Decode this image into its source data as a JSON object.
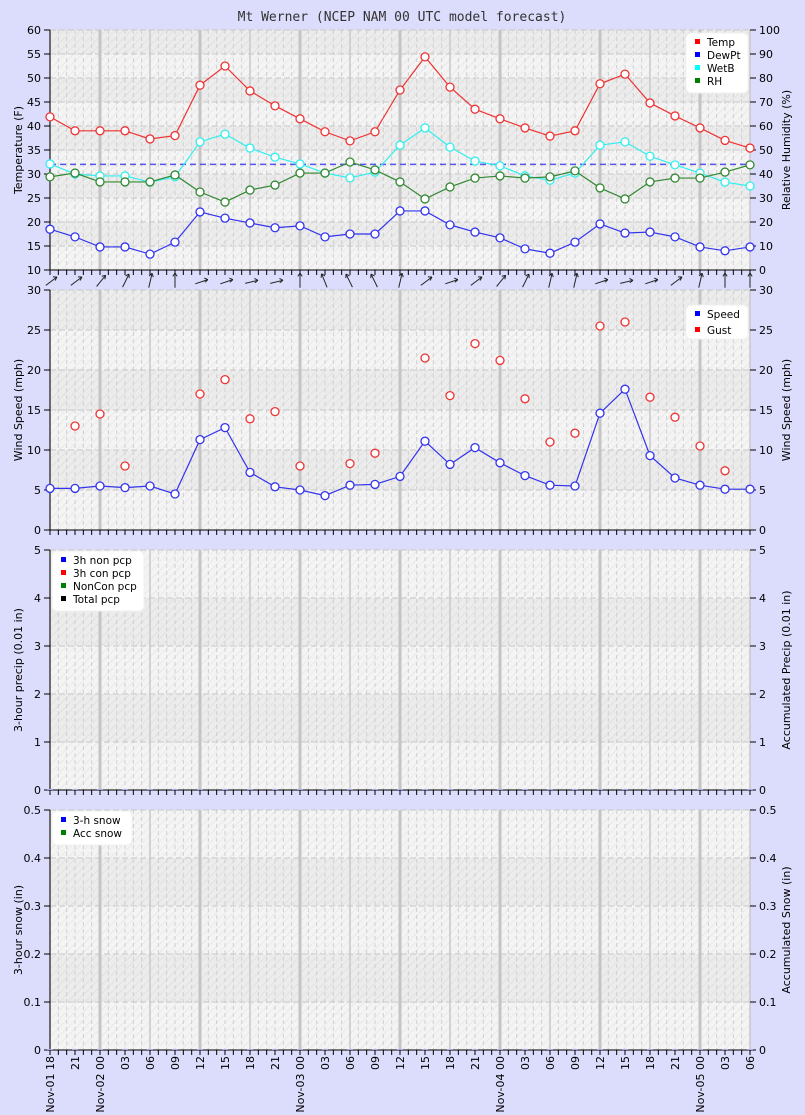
{
  "title": "Mt Werner (NCEP NAM 00 UTC model forecast)",
  "x_axis": {
    "labels": [
      "Nov-01 18",
      "21",
      "Nov-02 00",
      "03",
      "06",
      "09",
      "12",
      "15",
      "18",
      "21",
      "Nov-03 00",
      "03",
      "06",
      "09",
      "12",
      "15",
      "18",
      "21",
      "Nov-04 00",
      "03",
      "06",
      "09",
      "12",
      "15",
      "18",
      "21",
      "Nov-05 00",
      "03",
      "06"
    ]
  },
  "panels": {
    "temp": {
      "ylabel_left": "Temperature (F)",
      "ylabel_right": "Relative Humidity (%)",
      "legend": [
        {
          "label": "Temp",
          "color": "#ff0000"
        },
        {
          "label": "DewPt",
          "color": "#0000ff"
        },
        {
          "label": "WetB",
          "color": "#00ffff"
        },
        {
          "label": "RH",
          "color": "#008000"
        }
      ]
    },
    "wind": {
      "ylabel_left": "Wind Speed (mph)",
      "ylabel_right": "Wind Speed (mph)",
      "legend": [
        {
          "label": "Speed",
          "color": "#0000ff"
        },
        {
          "label": "Gust",
          "color": "#ff0000"
        }
      ]
    },
    "precip": {
      "ylabel_left": "3-hour precip (0.01 in)",
      "ylabel_right": "Accumulated Precip (0.01 in)",
      "legend": [
        {
          "label": "3h non pcp",
          "color": "#0000ff"
        },
        {
          "label": "3h con pcp",
          "color": "#ff0000"
        },
        {
          "label": "NonCon pcp",
          "color": "#008000"
        },
        {
          "label": "Total pcp",
          "color": "#000000"
        }
      ]
    },
    "snow": {
      "ylabel_left": "3-hour snow (in)",
      "ylabel_right": "Accumulated Snow (in)",
      "legend": [
        {
          "label": "3-h snow",
          "color": "#0000ff"
        },
        {
          "label": "Acc snow",
          "color": "#008000"
        }
      ]
    }
  },
  "chart_data": [
    {
      "type": "line",
      "title": "Mt Werner (NCEP NAM 00 UTC model forecast)",
      "xlabel": "",
      "ylabel": "Temperature (F)",
      "ylabel_right": "Relative Humidity (%)",
      "ylim": [
        10,
        60
      ],
      "ylim_right": [
        0,
        100
      ],
      "yticks": [
        10,
        15,
        20,
        25,
        30,
        35,
        40,
        45,
        50,
        55,
        60
      ],
      "yticks_right": [
        0,
        10,
        20,
        30,
        40,
        50,
        60,
        70,
        80,
        90,
        100
      ],
      "reference_line": {
        "y": 32,
        "style": "dashed",
        "color": "#5555ee"
      },
      "categories": [
        "Nov-01 18",
        "21",
        "Nov-02 00",
        "03",
        "06",
        "09",
        "12",
        "15",
        "18",
        "21",
        "Nov-03 00",
        "03",
        "06",
        "09",
        "12",
        "15",
        "18",
        "21",
        "Nov-04 00",
        "03",
        "06",
        "09",
        "12",
        "15",
        "18",
        "21",
        "Nov-05 00",
        "03",
        "06"
      ],
      "series": [
        {
          "name": "Temp",
          "color": "#ee3333",
          "axis": "left",
          "values": [
            41.9,
            39,
            39,
            39,
            37.3,
            38,
            48.5,
            52.5,
            47.3,
            44.2,
            41.5,
            38.8,
            36.9,
            38.8,
            47.5,
            54.4,
            48.1,
            43.5,
            41.5,
            39.6,
            37.9,
            39,
            48.8,
            50.8,
            44.8,
            42.1,
            39.6,
            37,
            35.4
          ]
        },
        {
          "name": "DewPt",
          "color": "#3333ee",
          "axis": "left",
          "values": [
            18.5,
            16.9,
            14.8,
            14.8,
            13.3,
            15.8,
            22.1,
            20.8,
            19.8,
            18.8,
            19.2,
            16.9,
            17.5,
            17.5,
            22.3,
            22.3,
            19.4,
            17.9,
            16.7,
            14.4,
            13.5,
            15.8,
            19.6,
            17.7,
            17.9,
            16.9,
            14.8,
            14.0,
            14.8
          ]
        },
        {
          "name": "WetB",
          "color": "#33eeee",
          "axis": "left",
          "values": [
            32.1,
            30,
            29.6,
            29.6,
            28.3,
            29.4,
            36.7,
            38.3,
            35.4,
            33.5,
            32.1,
            30.2,
            29.2,
            30.4,
            36,
            39.6,
            35.6,
            32.7,
            31.7,
            29.6,
            28.7,
            30.2,
            36,
            36.7,
            33.7,
            31.9,
            30.2,
            28.3,
            27.5
          ]
        },
        {
          "name": "RH",
          "color": "#338833",
          "axis": "right",
          "values": [
            38.8,
            40.4,
            36.7,
            36.7,
            36.7,
            39.6,
            32.5,
            28.3,
            33.3,
            35.4,
            40.4,
            40.4,
            45,
            41.7,
            36.7,
            29.6,
            34.6,
            38.3,
            39.2,
            38.3,
            38.8,
            41.3,
            34.2,
            29.6,
            36.7,
            38.3,
            38.3,
            40.8,
            43.8
          ]
        }
      ],
      "wind_direction_arrows_deg": [
        60,
        60,
        45,
        30,
        15,
        0,
        80,
        80,
        85,
        85,
        0,
        -25,
        -30,
        -30,
        15,
        60,
        80,
        60,
        45,
        30,
        15,
        15,
        80,
        85,
        80,
        60,
        15,
        0,
        0
      ],
      "legend_position": "top-right",
      "grid": true
    },
    {
      "type": "line",
      "xlabel": "",
      "ylabel": "Wind Speed (mph)",
      "ylabel_right": "Wind Speed (mph)",
      "ylim": [
        0,
        30
      ],
      "yticks": [
        0,
        5,
        10,
        15,
        20,
        25,
        30
      ],
      "categories": [
        "Nov-01 18",
        "21",
        "Nov-02 00",
        "03",
        "06",
        "09",
        "12",
        "15",
        "18",
        "21",
        "Nov-03 00",
        "03",
        "06",
        "09",
        "12",
        "15",
        "18",
        "21",
        "Nov-04 00",
        "03",
        "06",
        "09",
        "12",
        "15",
        "18",
        "21",
        "Nov-05 00",
        "03",
        "06"
      ],
      "series": [
        {
          "name": "Speed",
          "color": "#3333ee",
          "style": "line-markers",
          "values": [
            5.2,
            5.2,
            5.5,
            5.3,
            5.5,
            4.5,
            11.3,
            12.8,
            7.2,
            5.4,
            5.0,
            4.3,
            5.6,
            5.7,
            6.7,
            11.1,
            8.2,
            10.3,
            8.4,
            6.8,
            5.6,
            5.5,
            14.6,
            17.6,
            9.3,
            6.5,
            5.6,
            5.1,
            5.1
          ]
        },
        {
          "name": "Gust",
          "color": "#ee3333",
          "style": "markers",
          "values": [
            null,
            13,
            14.5,
            8,
            null,
            null,
            17,
            18.8,
            13.9,
            14.8,
            8,
            null,
            8.3,
            9.6,
            null,
            21.5,
            16.8,
            23.3,
            21.2,
            16.4,
            11,
            12.1,
            25.5,
            26,
            16.6,
            14.1,
            10.5,
            7.4,
            null
          ]
        }
      ],
      "legend_position": "top-right",
      "grid": true
    },
    {
      "type": "bar",
      "xlabel": "",
      "ylabel": "3-hour precip (0.01 in)",
      "ylabel_right": "Accumulated Precip (0.01 in)",
      "ylim": [
        0,
        5
      ],
      "yticks": [
        0,
        1,
        2,
        3,
        4,
        5
      ],
      "categories": [
        "Nov-01 18",
        "21",
        "Nov-02 00",
        "03",
        "06",
        "09",
        "12",
        "15",
        "18",
        "21",
        "Nov-03 00",
        "03",
        "06",
        "09",
        "12",
        "15",
        "18",
        "21",
        "Nov-04 00",
        "03",
        "06",
        "09",
        "12",
        "15",
        "18",
        "21",
        "Nov-05 00",
        "03",
        "06"
      ],
      "series": [
        {
          "name": "3h non pcp",
          "color": "#0000ff",
          "values": [
            0,
            0,
            0,
            0,
            0,
            0,
            0,
            0,
            0,
            0,
            0,
            0,
            0,
            0,
            0,
            0,
            0,
            0,
            0,
            0,
            0,
            0,
            0,
            0,
            0,
            0,
            0,
            0,
            0
          ]
        },
        {
          "name": "3h con pcp",
          "color": "#ff0000",
          "values": [
            0,
            0,
            0,
            0,
            0,
            0,
            0,
            0,
            0,
            0,
            0,
            0,
            0,
            0,
            0,
            0,
            0,
            0,
            0,
            0,
            0,
            0,
            0,
            0,
            0,
            0,
            0,
            0,
            0
          ]
        },
        {
          "name": "NonCon pcp",
          "color": "#008000",
          "values": [
            0,
            0,
            0,
            0,
            0,
            0,
            0,
            0,
            0,
            0,
            0,
            0,
            0,
            0,
            0,
            0,
            0,
            0,
            0,
            0,
            0,
            0,
            0,
            0,
            0,
            0,
            0,
            0,
            0
          ]
        },
        {
          "name": "Total pcp",
          "color": "#000000",
          "values": [
            0,
            0,
            0,
            0,
            0,
            0,
            0,
            0,
            0,
            0,
            0,
            0,
            0,
            0,
            0,
            0,
            0,
            0,
            0,
            0,
            0,
            0,
            0,
            0,
            0,
            0,
            0,
            0,
            0
          ]
        }
      ],
      "legend_position": "top-left",
      "grid": true
    },
    {
      "type": "bar",
      "xlabel": "",
      "ylabel": "3-hour snow (in)",
      "ylabel_right": "Accumulated Snow (in)",
      "ylim": [
        0,
        0.5
      ],
      "yticks": [
        0,
        0.1,
        0.2,
        0.3,
        0.4,
        0.5
      ],
      "categories": [
        "Nov-01 18",
        "21",
        "Nov-02 00",
        "03",
        "06",
        "09",
        "12",
        "15",
        "18",
        "21",
        "Nov-03 00",
        "03",
        "06",
        "09",
        "12",
        "15",
        "18",
        "21",
        "Nov-04 00",
        "03",
        "06",
        "09",
        "12",
        "15",
        "18",
        "21",
        "Nov-05 00",
        "03",
        "06"
      ],
      "series": [
        {
          "name": "3-h snow",
          "color": "#0000ff",
          "values": [
            0,
            0,
            0,
            0,
            0,
            0,
            0,
            0,
            0,
            0,
            0,
            0,
            0,
            0,
            0,
            0,
            0,
            0,
            0,
            0,
            0,
            0,
            0,
            0,
            0,
            0,
            0,
            0,
            0
          ]
        },
        {
          "name": "Acc snow",
          "color": "#008000",
          "values": [
            0,
            0,
            0,
            0,
            0,
            0,
            0,
            0,
            0,
            0,
            0,
            0,
            0,
            0,
            0,
            0,
            0,
            0,
            0,
            0,
            0,
            0,
            0,
            0,
            0,
            0,
            0,
            0,
            0
          ]
        }
      ],
      "legend_position": "top-left",
      "grid": true
    }
  ]
}
